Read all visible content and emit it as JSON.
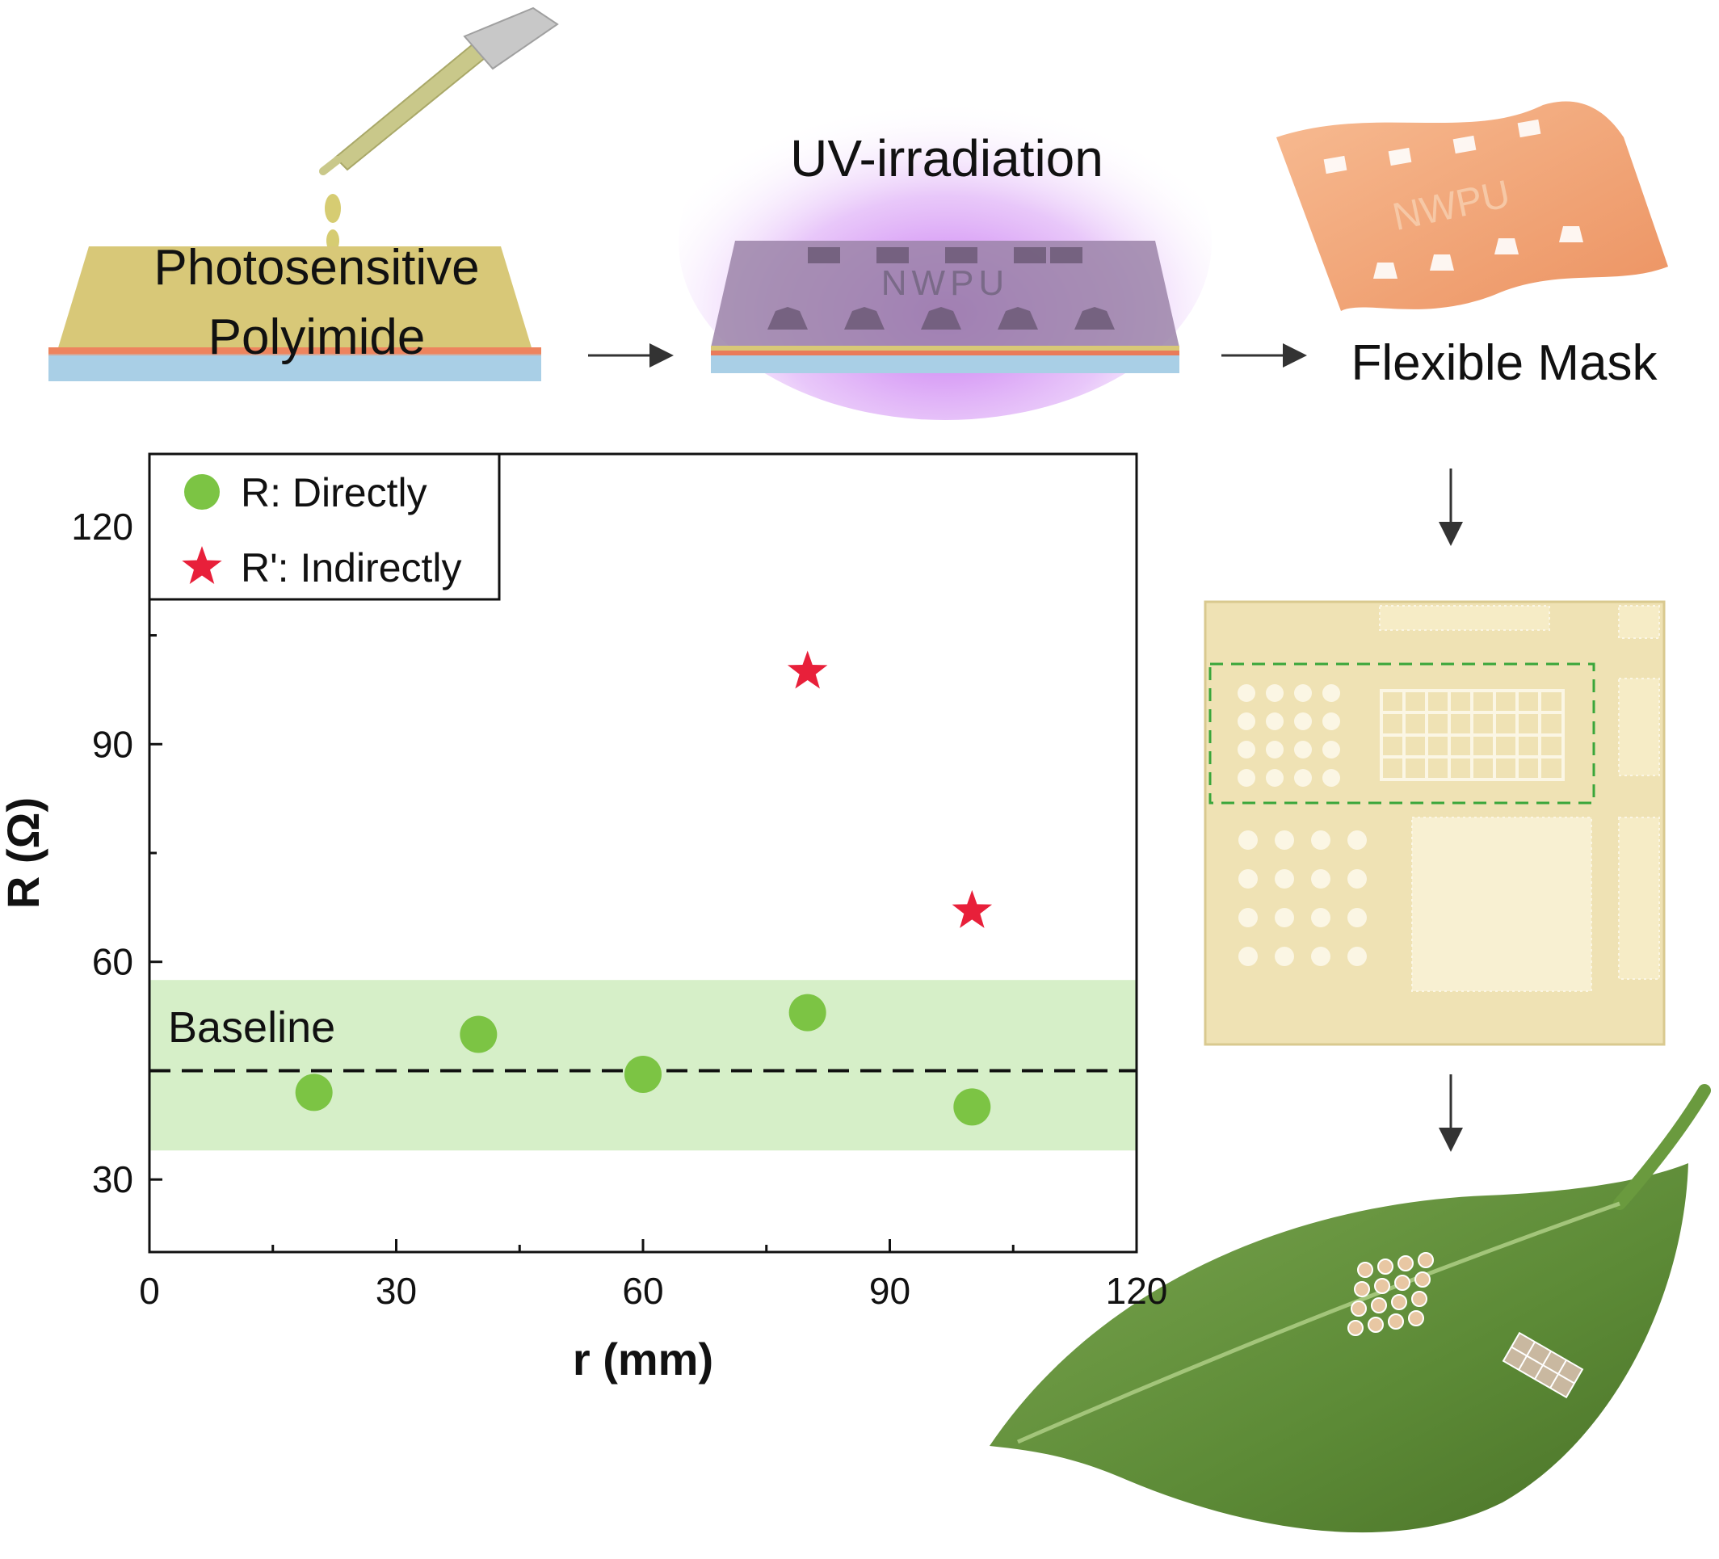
{
  "labels": {
    "photosensitive": "Photosensitive",
    "polyimide": "Polyimide",
    "uv_irradiation": "UV-irradiation",
    "flexible_mask": "Flexible Mask",
    "mask_text": "NWPU"
  },
  "colors": {
    "accent_green": "#7cc444",
    "star_red": "#e8203a",
    "band_green": "#d6efc8",
    "uv_purple": "#c070f0",
    "mask_orange": "#f2a77a",
    "polyimide_yellow": "#d8c878",
    "substrate_blue": "#a9cfe6",
    "leaf_green": "#5f8f3a"
  },
  "chart_data": {
    "type": "scatter",
    "xlabel": "r (mm)",
    "ylabel": "R (Ω)",
    "xlim": [
      0,
      120
    ],
    "ylim": [
      20,
      130
    ],
    "x_ticks": [
      "0",
      "30",
      "60",
      "90",
      "120"
    ],
    "y_ticks": [
      "30",
      "60",
      "90",
      "120"
    ],
    "grid": false,
    "legend_position": "top-left",
    "series": [
      {
        "name": "R: Directly",
        "marker": "circle",
        "x": [
          20,
          40,
          60,
          80,
          100
        ],
        "y": [
          42,
          50,
          44.5,
          53,
          40
        ]
      },
      {
        "name": "R': Indirectly",
        "marker": "star",
        "x": [
          80,
          100
        ],
        "y": [
          100,
          67
        ]
      }
    ],
    "baseline": {
      "label": "Baseline",
      "value": 45,
      "band": [
        34,
        57.5
      ]
    }
  }
}
